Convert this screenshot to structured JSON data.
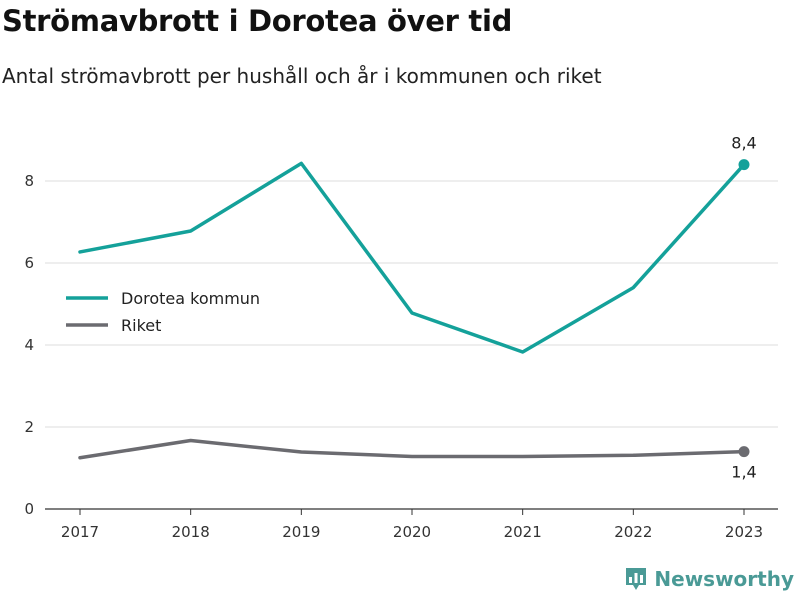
{
  "title": "Strömavbrott i Dorotea över tid",
  "subtitle": "Antal strömavbrott per hushåll och år i kommunen och riket",
  "brand": {
    "name": "Newsworthy",
    "icon": "bar-chart-icon",
    "color": "#4a9a96"
  },
  "chart_data": {
    "type": "line",
    "title": "Strömavbrott i Dorotea över tid",
    "subtitle": "Antal strömavbrott per hushåll och år i kommunen och riket",
    "xlabel": "",
    "ylabel": "",
    "x": [
      "2017",
      "2018",
      "2019",
      "2020",
      "2021",
      "2022",
      "2023"
    ],
    "ylim": [
      0,
      9
    ],
    "yticks": [
      0,
      2,
      4,
      6,
      8
    ],
    "grid": true,
    "legend_position": "left-middle",
    "series": [
      {
        "name": "Dorotea kommun",
        "color": "#14a19a",
        "values": [
          6.27,
          6.78,
          8.43,
          4.78,
          3.83,
          5.4,
          8.4
        ],
        "end_label": "8,4"
      },
      {
        "name": "Riket",
        "color": "#6b6b70",
        "values": [
          1.25,
          1.67,
          1.39,
          1.28,
          1.28,
          1.31,
          1.4
        ],
        "end_label": "1,4"
      }
    ]
  }
}
